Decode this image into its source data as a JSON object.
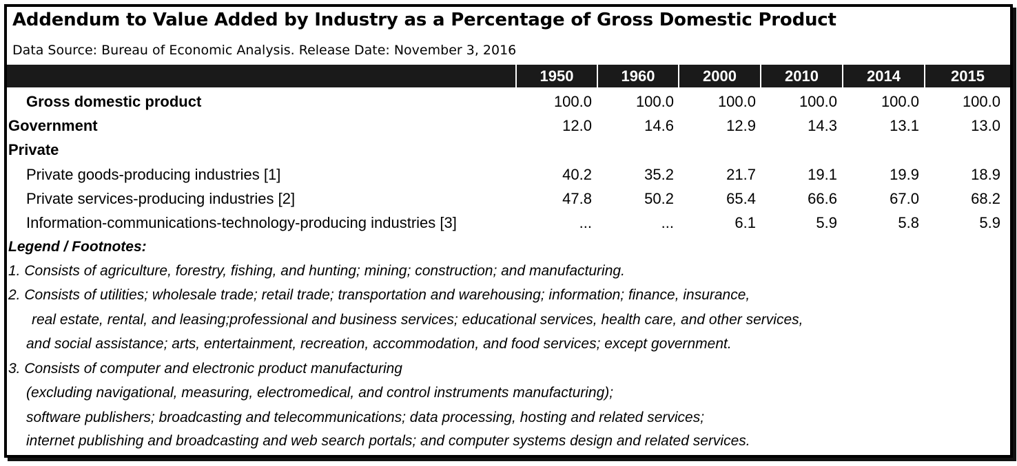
{
  "title": "Addendum to Value Added by Industry as a Percentage of Gross Domestic Product",
  "subtitle": "Data Source: Bureau of Economic Analysis. Release Date: November 3, 2016",
  "chart_data": {
    "type": "table",
    "columns": [
      "1950",
      "1960",
      "2000",
      "2010",
      "2014",
      "2015"
    ],
    "rows": [
      {
        "label": "Gross domestic product",
        "values": [
          "100.0",
          "100.0",
          "100.0",
          "100.0",
          "100.0",
          "100.0"
        ]
      },
      {
        "label": "Government",
        "values": [
          "12.0",
          "14.6",
          "12.9",
          "14.3",
          "13.1",
          "13.0"
        ]
      },
      {
        "label": "Private",
        "values": [
          "",
          "",
          "",
          "",
          "",
          ""
        ]
      },
      {
        "label": "Private goods-producing industries [1]",
        "values": [
          "40.2",
          "35.2",
          "21.7",
          "19.1",
          "19.9",
          "18.9"
        ]
      },
      {
        "label": "Private services-producing industries [2]",
        "values": [
          "47.8",
          "50.2",
          "65.4",
          "66.6",
          "67.0",
          "68.2"
        ]
      },
      {
        "label": "Information-communications-technology-producing industries [3]",
        "values": [
          "...",
          "...",
          "6.1",
          "5.9",
          "5.8",
          "5.9"
        ]
      }
    ]
  },
  "footnotes": {
    "heading": "Legend / Footnotes:",
    "lines": [
      "1. Consists of agriculture, forestry, fishing, and hunting; mining; construction; and manufacturing.",
      "2. Consists of utilities; wholesale trade; retail trade; transportation and warehousing; information; finance, insurance,",
      "real estate, rental, and leasing;professional and business services; educational services, health care, and other services,",
      "and social assistance; arts, entertainment, recreation, accommodation, and food services;  except government.",
      "3. Consists of computer and electronic product manufacturing",
      "(excluding navigational, measuring, electromedical, and control instruments manufacturing);",
      "software publishers; broadcasting and telecommunications; data processing, hosting and related services;",
      "internet publishing and broadcasting and web search portals; and computer systems design and related services."
    ]
  }
}
